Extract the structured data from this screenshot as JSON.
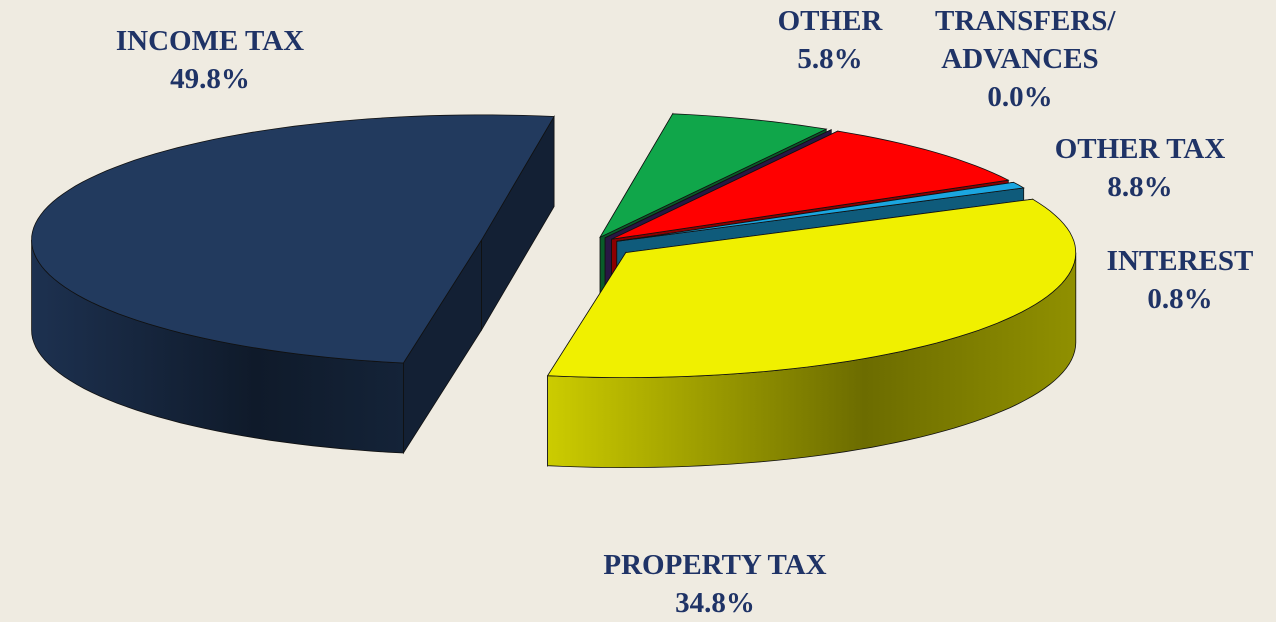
{
  "chart_data": {
    "type": "pie3d",
    "categories": [
      "INCOME TAX",
      "OTHER",
      "TRANSFERS/ ADVANCES",
      "OTHER TAX",
      "INTEREST",
      "PROPERTY TAX"
    ],
    "values": [
      49.8,
      5.8,
      0.0,
      8.8,
      0.8,
      34.8
    ],
    "value_labels": [
      "49.8%",
      "5.8%",
      "0.0%",
      "8.8%",
      "0.8%",
      "34.8%"
    ],
    "colors": [
      "#223a5e",
      "#10a64a",
      "#4a2a7c",
      "#ff0000",
      "#1ba6e0",
      "#f0f000"
    ]
  }
}
